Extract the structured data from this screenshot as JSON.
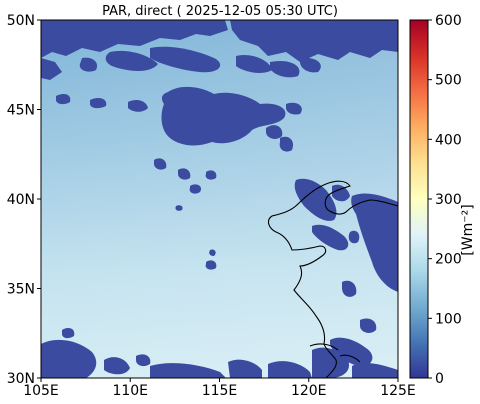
{
  "title": "PAR, direct ( 2025-12-05 05:30 UTC)",
  "map": {
    "extent": {
      "lon_min": 105,
      "lon_max": 125,
      "lat_min": 30,
      "lat_max": 50
    },
    "x_ticks": [
      {
        "value": 105,
        "label": "105E"
      },
      {
        "value": 110,
        "label": "110E"
      },
      {
        "value": 115,
        "label": "115E"
      },
      {
        "value": 120,
        "label": "120E"
      },
      {
        "value": 125,
        "label": "125E"
      }
    ],
    "y_ticks": [
      {
        "value": 50,
        "label": "50N"
      },
      {
        "value": 45,
        "label": "45N"
      },
      {
        "value": 40,
        "label": "40N"
      },
      {
        "value": 35,
        "label": "35N"
      },
      {
        "value": 30,
        "label": "30N"
      }
    ]
  },
  "colorbar": {
    "label": "[Wm⁻²]",
    "min": 0,
    "max": 600,
    "colormap": "RdYlBu_r",
    "ticks": [
      {
        "value": 0,
        "label": "0"
      },
      {
        "value": 100,
        "label": "100"
      },
      {
        "value": 200,
        "label": "200"
      },
      {
        "value": 300,
        "label": "300"
      },
      {
        "value": 400,
        "label": "400"
      },
      {
        "value": 500,
        "label": "500"
      },
      {
        "value": 600,
        "label": "600"
      }
    ]
  },
  "colors": {
    "cloud_fill": "#3a4ba0",
    "field_north": "#8cbedd",
    "field_mid": "#b8dbec",
    "field_south": "#d3ebf3",
    "coastline": "#000000"
  }
}
